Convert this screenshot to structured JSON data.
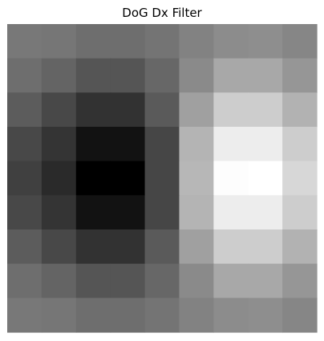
{
  "chart_data": {
    "type": "heatmap",
    "title": "DoG Dx Filter",
    "xlabel": "",
    "ylabel": "",
    "rows": 9,
    "cols": 9,
    "colormap": "gray",
    "value_range": [
      0,
      255
    ],
    "values": [
      [
        120,
        118,
        110,
        110,
        116,
        130,
        140,
        142,
        134
      ],
      [
        110,
        100,
        85,
        85,
        103,
        138,
        168,
        168,
        150
      ],
      [
        92,
        72,
        50,
        50,
        90,
        160,
        205,
        205,
        178
      ],
      [
        72,
        52,
        18,
        18,
        70,
        180,
        237,
        237,
        205
      ],
      [
        64,
        42,
        0,
        0,
        70,
        183,
        253,
        255,
        215
      ],
      [
        72,
        52,
        18,
        18,
        70,
        180,
        237,
        237,
        205
      ],
      [
        92,
        72,
        50,
        50,
        90,
        160,
        205,
        205,
        178
      ],
      [
        110,
        100,
        85,
        85,
        103,
        138,
        168,
        168,
        150
      ],
      [
        120,
        118,
        110,
        110,
        116,
        130,
        140,
        142,
        134
      ]
    ]
  }
}
